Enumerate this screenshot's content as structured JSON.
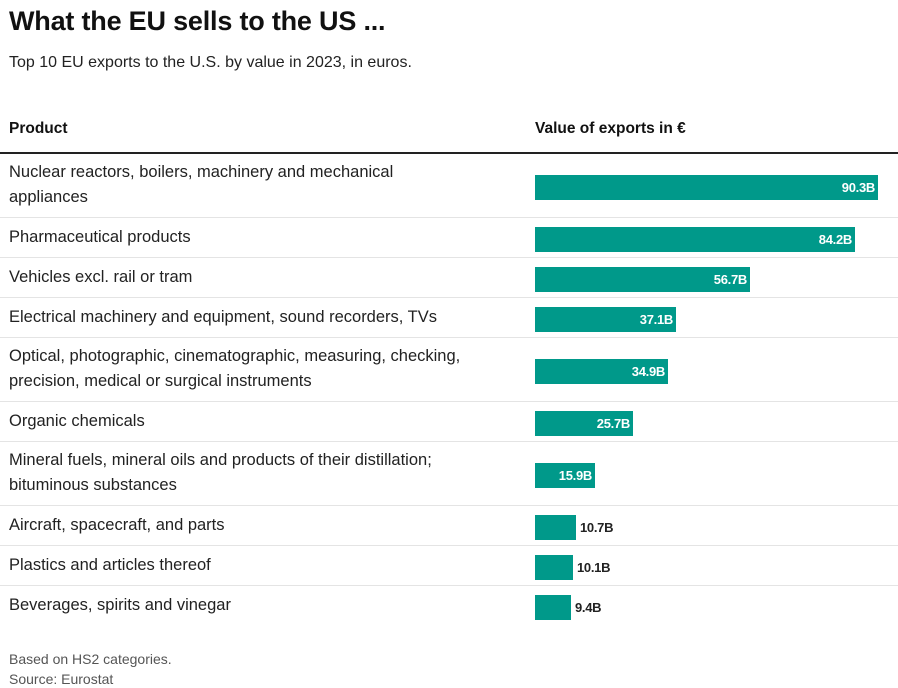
{
  "title": "What the EU sells to the US ...",
  "subtitle": "Top 10 EU exports to the U.S. by value in 2023, in euros.",
  "columns": {
    "product": "Product",
    "value": "Value of exports in €"
  },
  "chart_data": {
    "type": "bar",
    "orientation": "horizontal",
    "title": "What the EU sells to the US ...",
    "subtitle": "Top 10 EU exports to the U.S. by value in 2023, in euros.",
    "unit": "€ billions",
    "categories": [
      "Nuclear reactors, boilers, machinery and mechanical appliances",
      "Pharmaceutical products",
      "Vehicles excl. rail or tram",
      "Electrical machinery and equipment, sound recorders, TVs",
      "Optical, photographic, cinematographic, measuring, checking, precision, medical or surgical instruments",
      "Organic chemicals",
      "Mineral fuels, mineral oils and products of their distillation; bituminous substances",
      "Aircraft, spacecraft, and parts",
      "Plastics and articles thereof",
      "Beverages, spirits and vinegar"
    ],
    "category_lines": [
      [
        "Nuclear reactors, boilers, machinery and mechanical",
        "appliances"
      ],
      [
        "Pharmaceutical products"
      ],
      [
        "Vehicles excl. rail or tram"
      ],
      [
        "Electrical machinery and equipment, sound recorders, TVs"
      ],
      [
        "Optical, photographic, cinematographic, measuring, checking,",
        "precision, medical or surgical instruments"
      ],
      [
        "Organic chemicals"
      ],
      [
        "Mineral fuels, mineral oils and products of their distillation;",
        "bituminous substances"
      ],
      [
        "Aircraft, spacecraft, and parts"
      ],
      [
        "Plastics and articles thereof"
      ],
      [
        "Beverages, spirits and vinegar"
      ]
    ],
    "values": [
      90.3,
      84.2,
      56.7,
      37.1,
      34.9,
      25.7,
      15.9,
      10.7,
      10.1,
      9.4
    ],
    "value_labels": [
      "90.3B",
      "84.2B",
      "56.7B",
      "37.1B",
      "34.9B",
      "25.7B",
      "15.9B",
      "10.7B",
      "10.1B",
      "9.4B"
    ],
    "bar_color": "#00998a",
    "grid": false,
    "legend": "none"
  },
  "notes": {
    "basis": "Based on HS2 categories.",
    "source": "Source: Eurostat"
  }
}
